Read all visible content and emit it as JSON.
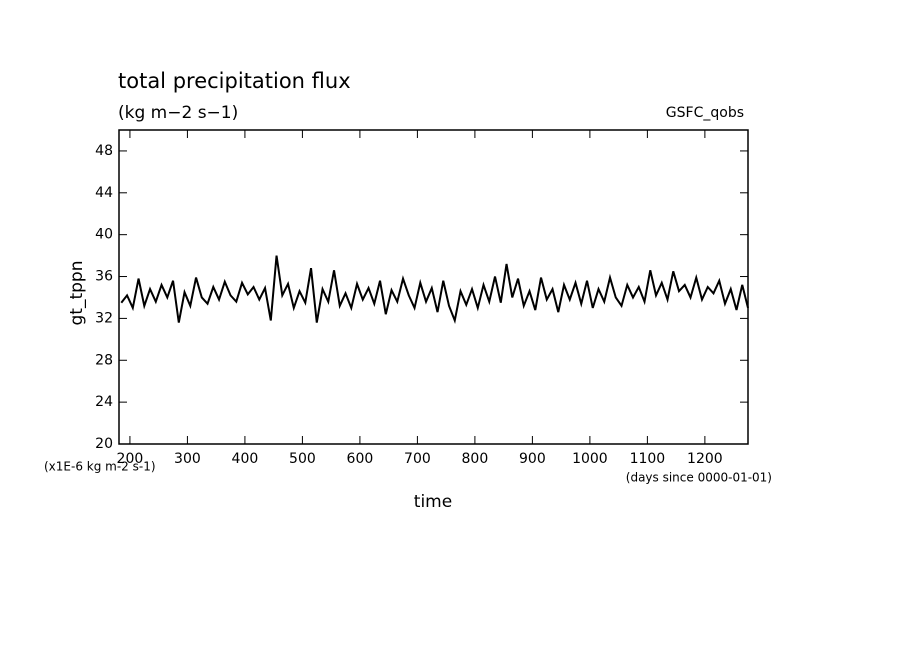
{
  "chart_data": {
    "type": "line",
    "title": "total precipitation flux",
    "subtitle": "(kg m−2 s−1)",
    "source": "GSFC_qobs",
    "ylabel": "gt_tppn",
    "xlabel": "time",
    "yunit": "(x1E-6 kg m-2 s-1)",
    "xunit": "(days since 0000-01-01)",
    "xlim": [
      181,
      1275
    ],
    "ylim": [
      20,
      50
    ],
    "xticks": [
      200,
      300,
      400,
      500,
      600,
      700,
      800,
      900,
      1000,
      1100,
      1200
    ],
    "yticks": [
      20,
      24,
      28,
      32,
      36,
      40,
      44,
      48
    ],
    "x": [
      185,
      195,
      205,
      215,
      225,
      235,
      245,
      255,
      265,
      275,
      285,
      295,
      305,
      315,
      325,
      335,
      345,
      355,
      365,
      375,
      385,
      395,
      405,
      415,
      425,
      435,
      445,
      455,
      465,
      475,
      485,
      495,
      505,
      515,
      525,
      535,
      545,
      555,
      565,
      575,
      585,
      595,
      605,
      615,
      625,
      635,
      645,
      655,
      665,
      675,
      685,
      695,
      705,
      715,
      725,
      735,
      745,
      755,
      765,
      775,
      785,
      795,
      805,
      815,
      825,
      835,
      845,
      855,
      865,
      875,
      885,
      895,
      905,
      915,
      925,
      935,
      945,
      955,
      965,
      975,
      985,
      995,
      1005,
      1015,
      1025,
      1035,
      1045,
      1055,
      1065,
      1075,
      1085,
      1095,
      1105,
      1115,
      1125,
      1135,
      1145,
      1155,
      1165,
      1175,
      1185,
      1195,
      1205,
      1215,
      1225,
      1235,
      1245,
      1255,
      1265,
      1275
    ],
    "series": [
      {
        "color": "#000000",
        "values": [
          33.5,
          34.2,
          33.0,
          35.8,
          33.2,
          34.8,
          33.6,
          35.2,
          34.0,
          35.6,
          31.6,
          34.5,
          33.2,
          35.9,
          34.0,
          33.4,
          35.0,
          33.8,
          35.5,
          34.2,
          33.6,
          35.4,
          34.3,
          35.0,
          33.8,
          34.9,
          31.8,
          38.0,
          34.2,
          35.3,
          33.0,
          34.6,
          33.5,
          36.8,
          31.6,
          34.8,
          33.6,
          36.6,
          33.2,
          34.4,
          33.0,
          35.3,
          33.8,
          34.9,
          33.4,
          35.6,
          32.4,
          34.7,
          33.6,
          35.8,
          34.2,
          33.0,
          35.4,
          33.6,
          34.9,
          32.6,
          35.6,
          33.2,
          31.8,
          34.6,
          33.3,
          34.8,
          33.0,
          35.2,
          33.6,
          36.0,
          33.5,
          37.2,
          34.0,
          35.8,
          33.2,
          34.6,
          32.8,
          35.9,
          33.8,
          34.8,
          32.6,
          35.2,
          33.8,
          35.4,
          33.4,
          35.6,
          33.0,
          34.8,
          33.6,
          35.9,
          34.0,
          33.2,
          35.2,
          34.0,
          35.0,
          33.6,
          36.6,
          34.2,
          35.4,
          33.8,
          36.5,
          34.6,
          35.2,
          34.0,
          35.9,
          33.8,
          35.0,
          34.4,
          35.6,
          33.4,
          34.8,
          32.8,
          35.2,
          33.0
        ]
      }
    ]
  }
}
